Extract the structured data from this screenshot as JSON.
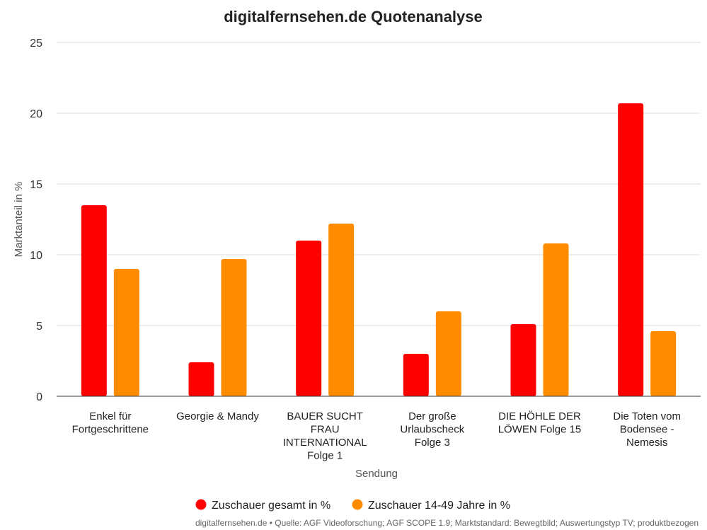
{
  "chart_data": {
    "type": "bar",
    "title": "digitalfernsehen.de Quotenanalyse",
    "xlabel": "Sendung",
    "ylabel": "Marktanteil in %",
    "ylim": [
      0,
      25
    ],
    "yticks": [
      0,
      5,
      10,
      15,
      20,
      25
    ],
    "grid": true,
    "legend_position": "bottom",
    "categories": [
      [
        "Enkel für",
        "Fortgeschrittene"
      ],
      [
        "Georgie & Mandy"
      ],
      [
        "BAUER SUCHT",
        "FRAU",
        "INTERNATIONAL",
        "Folge 1"
      ],
      [
        "Der große",
        "Urlaubscheck",
        "Folge 3"
      ],
      [
        "DIE HÖHLE DER",
        "LÖWEN Folge 15"
      ],
      [
        "Die Toten vom",
        "Bodensee -",
        "Nemesis"
      ]
    ],
    "series": [
      {
        "name": "Zuschauer gesamt in %",
        "color": "#ff0000",
        "values": [
          13.5,
          2.4,
          11.0,
          3.0,
          5.1,
          20.7
        ]
      },
      {
        "name": "Zuschauer 14-49 Jahre in %",
        "color": "#ff8c00",
        "values": [
          9.0,
          9.7,
          12.2,
          6.0,
          10.8,
          4.6
        ]
      }
    ],
    "footer": "digitalfernsehen.de • Quelle: AGF Videoforschung; AGF SCOPE 1.9; Marktstandard: Bewegtbild; Auswertungstyp TV; produktbezogen"
  }
}
